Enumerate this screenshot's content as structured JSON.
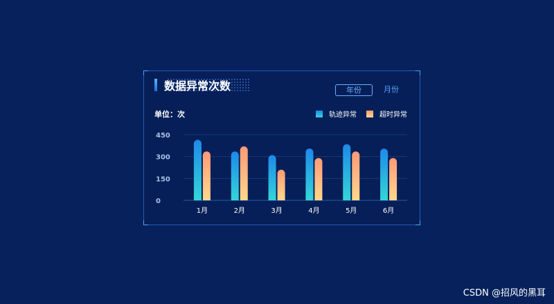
{
  "panel": {
    "title": "数据异常次数",
    "tabs": [
      {
        "label": "年份",
        "active": true
      },
      {
        "label": "月份",
        "active": false
      }
    ],
    "unit_label": "单位：次"
  },
  "chart_data": {
    "type": "bar",
    "categories": [
      "1月",
      "2月",
      "3月",
      "4月",
      "5月",
      "6月"
    ],
    "series": [
      {
        "name": "轨迹异常",
        "values": [
          415,
          335,
          310,
          355,
          385,
          355
        ],
        "color_top": "#1e89e9",
        "color_bottom": "#33d6d8"
      },
      {
        "name": "超时异常",
        "values": [
          335,
          370,
          210,
          290,
          335,
          290
        ],
        "color_top": "#ff9a76",
        "color_bottom": "#ffd88b"
      }
    ],
    "y_ticks": [
      0,
      150,
      300,
      450
    ],
    "ylim": [
      0,
      450
    ],
    "legend_position": "top-right",
    "grid": true
  },
  "watermark": "CSDN @招风的黑耳"
}
